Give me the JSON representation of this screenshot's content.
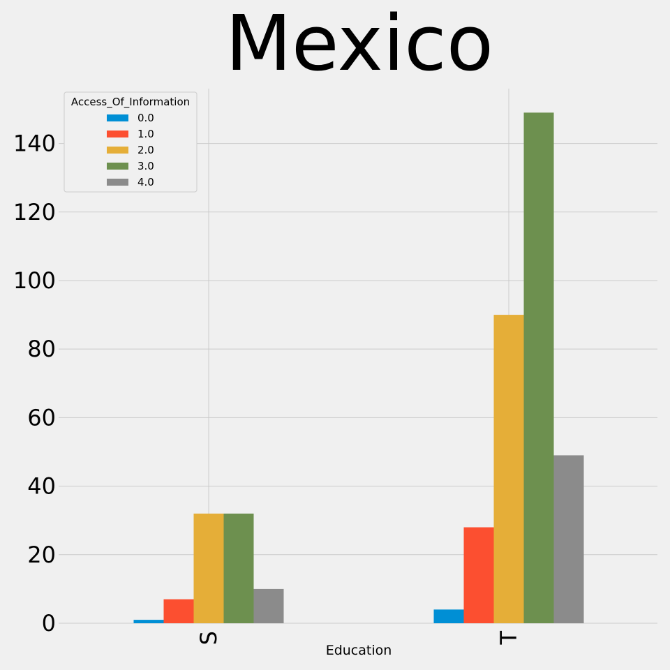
{
  "chart_data": {
    "type": "bar",
    "title": "Mexico",
    "xlabel": "Education",
    "ylabel": "",
    "categories": [
      "S",
      "T"
    ],
    "legend_title": "Access_Of_Information",
    "legend_position": "top-left",
    "grid": true,
    "ylim": [
      0,
      156
    ],
    "yticks": [
      0,
      20,
      40,
      60,
      80,
      100,
      120,
      140
    ],
    "series": [
      {
        "name": "0.0",
        "color": "#008fd5",
        "values": [
          1,
          4
        ]
      },
      {
        "name": "1.0",
        "color": "#fc4f30",
        "values": [
          7,
          28
        ]
      },
      {
        "name": "2.0",
        "color": "#e5ae38",
        "values": [
          32,
          90
        ]
      },
      {
        "name": "3.0",
        "color": "#6d904f",
        "values": [
          32,
          149
        ]
      },
      {
        "name": "4.0",
        "color": "#8b8b8b",
        "values": [
          10,
          49
        ]
      }
    ]
  }
}
